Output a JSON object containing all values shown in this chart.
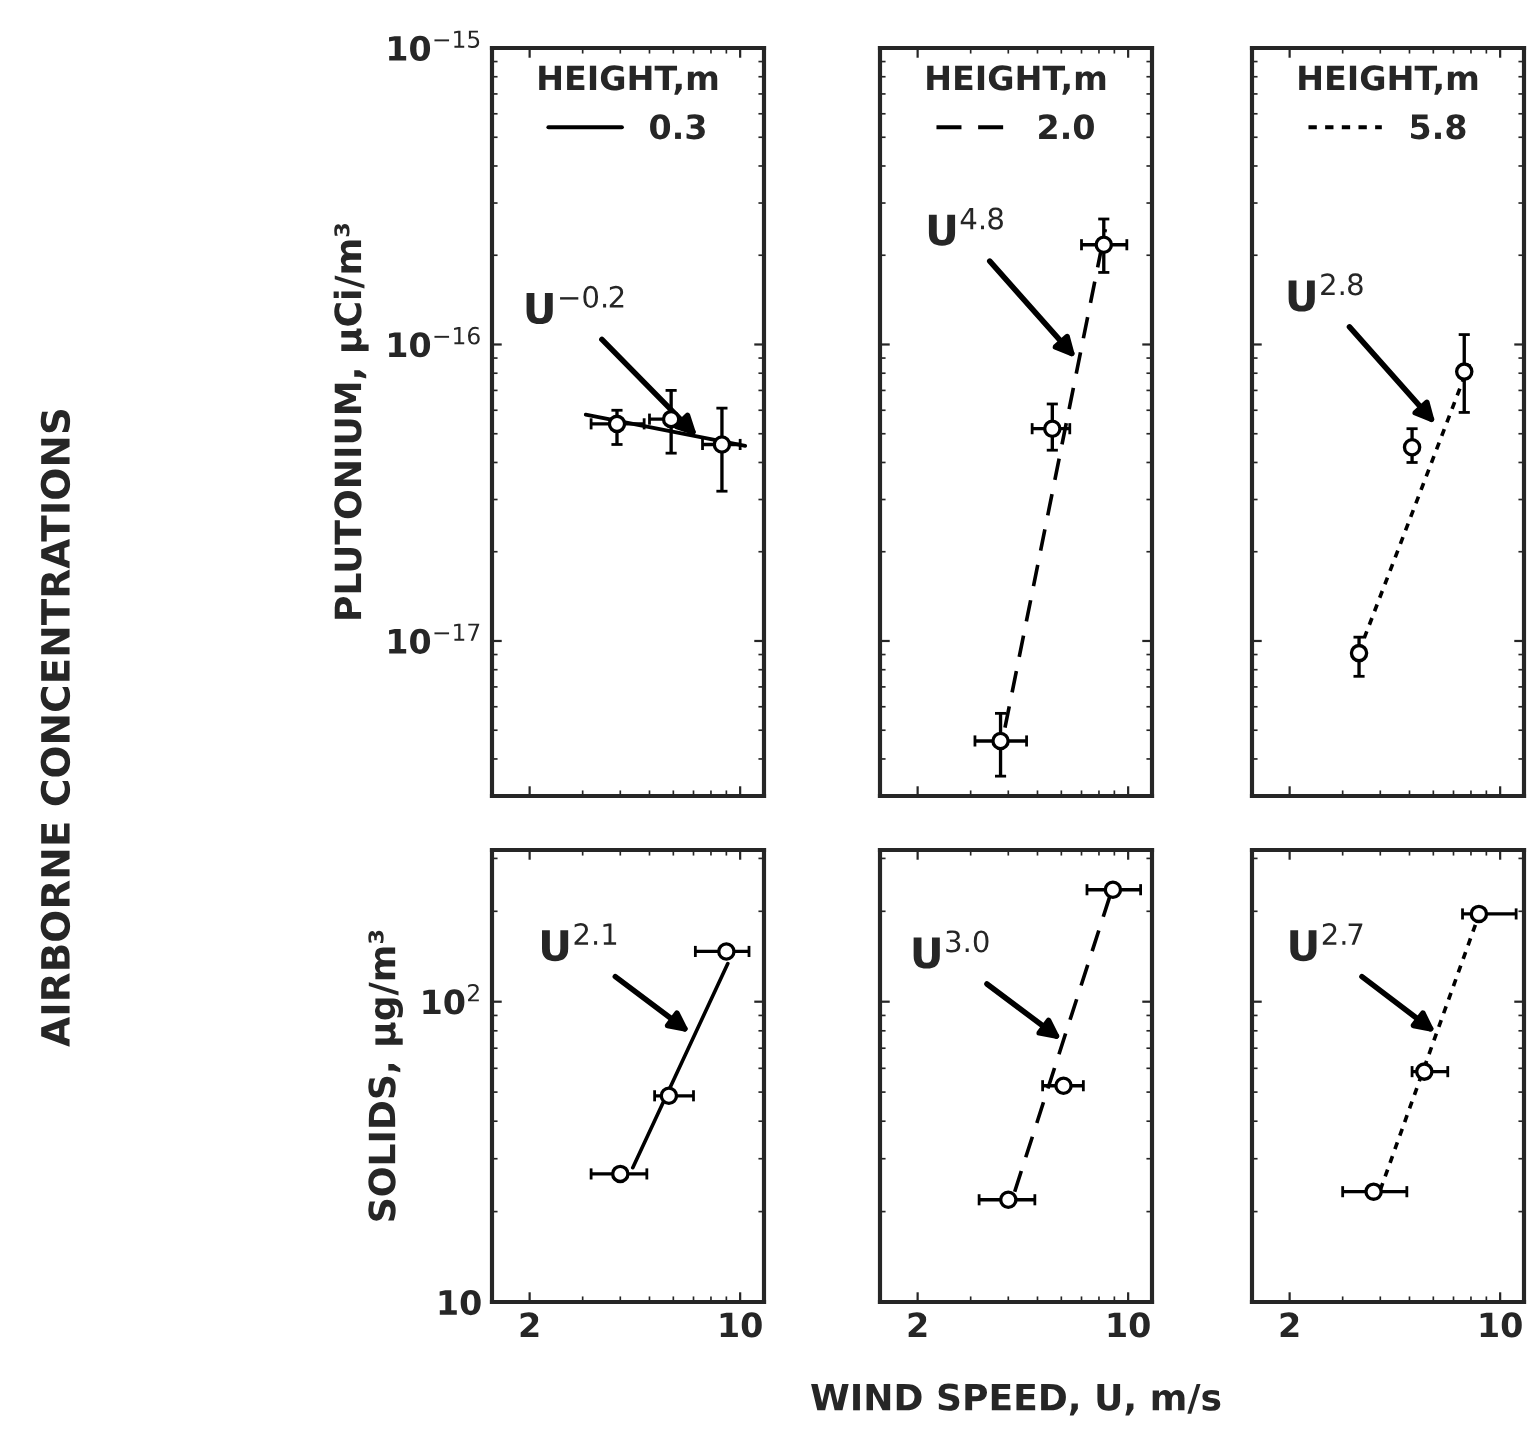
{
  "chart_data": [
    {
      "type": "scatter",
      "ylabel": "PLUTONIUM, µCi/m³",
      "legend_title": "HEIGHT,m",
      "legend": "top",
      "log": "xy",
      "tick_labels": "y",
      "xlim": [
        1.5,
        12
      ],
      "xticks": [
        2,
        10
      ],
      "ylim": [
        3e-18,
        1e-15
      ],
      "yticks": [
        {
          "value": 1e-17,
          "label": "10$^{−17}$"
        },
        {
          "value": 1e-16,
          "label": "10$^{−16}$"
        },
        {
          "value": 1e-15,
          "label": "10$^{−15}$"
        }
      ],
      "annotations": [
        {
          "text": "U$^{−0.2}$",
          "x": 7.2,
          "y": 4.9e-17
        },
        "AIRBORNE CONCENTRATIONS"
      ],
      "series": [
        {
          "color": "#000000",
          "marker": "circle",
          "x": [
            3.9,
            5.9,
            8.7
          ],
          "values": [
            5.4e-17,
            5.6e-17,
            4.6e-17
          ],
          "errors": [
            [
              4.6e-17,
              6e-17
            ],
            [
              4.3e-17,
              7e-17
            ],
            [
              3.2e-17,
              6.1e-17
            ]
          ],
          "xerrors": [
            [
              3.2,
              4.8
            ],
            [
              5.0,
              6.7
            ],
            [
              7.5,
              10.0
            ]
          ]
        },
        {
          "type": "line",
          "name": "0.3",
          "color": "#000000",
          "line_style": "solid",
          "x": [
            3.07,
            10.4
          ],
          "values": [
            5.8e-17,
            4.55e-17
          ]
        }
      ]
    },
    {
      "type": "scatter",
      "legend_title": "HEIGHT,m",
      "legend": "top",
      "log": "xy",
      "tick_labels": false,
      "xlim": [
        1.5,
        12
      ],
      "xticks": [
        2,
        10
      ],
      "ylim": [
        3e-18,
        1e-15
      ],
      "yticks": [
        1e-17,
        1e-16,
        1e-15
      ],
      "annotations": [
        {
          "text": "U$^{4.8}$",
          "x": 6.7,
          "y": 9e-17
        }
      ],
      "series": [
        {
          "color": "#000000",
          "marker": "circle",
          "x": [
            3.77,
            5.6,
            8.3
          ],
          "values": [
            4.6e-18,
            5.2e-17,
            2.17e-16
          ],
          "errors": [
            [
              3.5e-18,
              5.7e-18
            ],
            [
              4.4e-17,
              6.3e-17
            ],
            [
              1.75e-16,
              2.65e-16
            ]
          ],
          "xerrors": [
            [
              3.1,
              4.6
            ],
            [
              4.8,
              6.4
            ],
            [
              7.0,
              9.9
            ]
          ]
        },
        {
          "type": "line",
          "name": "2.0",
          "color": "#000000",
          "line_style": "dashed",
          "x": [
            3.9,
            8.4
          ],
          "values": [
            5.1e-18,
            2.45e-16
          ]
        }
      ]
    },
    {
      "type": "scatter",
      "legend_title": "HEIGHT,m",
      "legend": "top",
      "log": "xy",
      "tick_labels": false,
      "xlim": [
        1.5,
        12
      ],
      "xticks": [
        2,
        10
      ],
      "ylim": [
        3e-18,
        1e-15
      ],
      "yticks": [
        1e-17,
        1e-16,
        1e-15
      ],
      "annotations": [
        {
          "text": "U$^{2.8}$",
          "x": 6.1,
          "y": 5.4e-17
        }
      ],
      "series": [
        {
          "color": "#000000",
          "marker": "circle",
          "x": [
            3.4,
            5.1,
            7.6
          ],
          "values": [
            9.1e-18,
            4.5e-17,
            8.1e-17
          ],
          "errors": [
            [
              7.6e-18,
              1.03e-17
            ],
            [
              4e-17,
              5.2e-17
            ],
            [
              5.9e-17,
              1.08e-16
            ]
          ]
        },
        {
          "type": "line",
          "name": "5.8",
          "color": "#000000",
          "line_style": "dotted",
          "x": [
            3.4,
            7.9
          ],
          "values": [
            9.2e-18,
            8.6e-17
          ]
        }
      ]
    },
    {
      "type": "scatter",
      "ylabel": "SOLIDS, µg/m³",
      "log": "xy",
      "xlim": [
        1.5,
        12
      ],
      "xticks": [
        2,
        10
      ],
      "ylim": [
        10,
        320
      ],
      "yticks": [
        10,
        {
          "value": 100,
          "label": "10$^{2}$"
        }
      ],
      "annotations": [
        {
          "text": "U$^{2.1}$",
          "x": 6.8,
          "y": 79
        }
      ],
      "series": [
        {
          "color": "#000000",
          "marker": "circle",
          "x": [
            4.0,
            5.8,
            9.0
          ],
          "values": [
            26.7,
            48.6,
            147
          ],
          "xerrors": [
            [
              3.2,
              4.9
            ],
            [
              5.2,
              7.0
            ],
            [
              7.1,
              10.7
            ]
          ]
        },
        {
          "type": "line",
          "color": "#000000",
          "line_style": "solid",
          "x": [
            4.4,
            9.1
          ],
          "values": [
            28,
            134
          ]
        }
      ]
    },
    {
      "type": "scatter",
      "xlabel": "WIND SPEED, U, m/s",
      "log": "xy",
      "tick_labels": "x",
      "xlim": [
        1.5,
        12
      ],
      "xticks": [
        2,
        10
      ],
      "ylim": [
        10,
        320
      ],
      "yticks": [
        10,
        100
      ],
      "annotations": [
        {
          "text": "U$^{3.0}$",
          "x": 6.0,
          "y": 74.7
        }
      ],
      "series": [
        {
          "color": "#000000",
          "marker": "circle",
          "x": [
            4.0,
            6.1,
            8.9
          ],
          "values": [
            21.9,
            52.5,
            236
          ],
          "xerrors": [
            [
              3.2,
              4.9
            ],
            [
              5.2,
              7.1
            ],
            [
              7.3,
              11.0
            ]
          ]
        },
        {
          "type": "line",
          "color": "#000000",
          "line_style": "dashed",
          "x": [
            4.2,
            8.7
          ],
          "values": [
            23.3,
            225
          ]
        }
      ]
    },
    {
      "type": "scatter",
      "log": "xy",
      "tick_labels": "x",
      "xlim": [
        1.5,
        12
      ],
      "xticks": [
        2,
        10
      ],
      "ylim": [
        10,
        320
      ],
      "yticks": [
        10,
        100
      ],
      "annotations": [
        {
          "text": "U$^{2.7}$",
          "x": 6.1,
          "y": 79
        }
      ],
      "series": [
        {
          "color": "#000000",
          "marker": "circle",
          "x": [
            3.8,
            5.6,
            8.5
          ],
          "values": [
            23.3,
            58.5,
            196
          ],
          "xerrors": [
            [
              3.0,
              4.9
            ],
            [
              5.1,
              6.7
            ],
            [
              7.5,
              11.3
            ]
          ]
        },
        {
          "type": "line",
          "color": "#000000",
          "line_style": "dotted",
          "x": [
            4.0,
            8.4
          ],
          "values": [
            23.6,
            188
          ]
        }
      ]
    }
  ]
}
